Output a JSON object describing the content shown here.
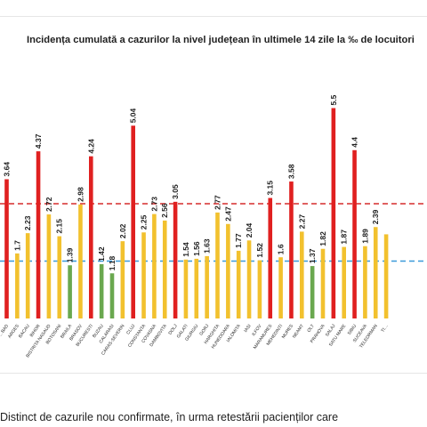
{
  "chart_data": {
    "type": "bar",
    "title": "Incidența cumulată a cazurilor la nivel județean în ultimele 14 zile la ‰ de locuitori",
    "xlabel": "",
    "ylabel": "",
    "ylim": [
      0,
      6
    ],
    "grid": false,
    "legend": "none",
    "categories": [
      "…BAD",
      "ARGES",
      "BACAU",
      "BIHOR",
      "BISTRITA NASAUD",
      "BOTOSANI",
      "BRAILA",
      "BRASOV",
      "BUCURESTI",
      "BUZAU",
      "CALARASI",
      "CARAS-SEVERIN",
      "CLUJ",
      "CONSTANTA",
      "COVASNA",
      "DAMBOVITA",
      "DOLJ",
      "GALATI",
      "GIURGIU",
      "GORJ",
      "HARGHITA",
      "HUNEDOARA",
      "IALOMITA",
      "IASI",
      "ILFOV",
      "MARAMURES",
      "MEHEDINTI",
      "MURES",
      "NEAMT",
      "OLT",
      "PRAHOVA",
      "SALAJ",
      "SATU MARE",
      "SIBIU",
      "SUCEAVA",
      "TELEORMAN",
      "TI…"
    ],
    "values": [
      3.64,
      1.7,
      2.23,
      4.37,
      2.72,
      2.15,
      1.39,
      2.98,
      4.24,
      1.42,
      1.18,
      2.02,
      5.04,
      2.25,
      2.73,
      2.56,
      3.05,
      1.54,
      1.56,
      1.63,
      2.77,
      2.47,
      1.77,
      2.04,
      1.52,
      3.15,
      1.6,
      3.58,
      2.27,
      1.37,
      1.82,
      5.5,
      1.87,
      4.4,
      1.89,
      2.39,
      2.2
    ],
    "data_labels": [
      "3.64",
      "1.7",
      "2.23",
      "4.37",
      "2.72",
      "2.15",
      "1.39",
      "2.98",
      "4.24",
      "1.42",
      "1.18",
      "2.02",
      "5.04",
      "2.25",
      "2.73",
      "2.56",
      "3.05",
      "1.54",
      "1.56",
      "1.63",
      "2.77",
      "2.47",
      "1.77",
      "2.04",
      "1.52",
      "3.15",
      "1.6",
      "3.58",
      "2.27",
      "1.37",
      "1.82",
      "5.5",
      "1.87",
      "4.4",
      "1.89",
      "2.39",
      ""
    ],
    "bar_colors": [
      "red",
      "yellow",
      "yellow",
      "red",
      "yellow",
      "yellow",
      "green",
      "yellow",
      "red",
      "green",
      "green",
      "yellow",
      "red",
      "yellow",
      "yellow",
      "yellow",
      "red",
      "yellow",
      "yellow",
      "yellow",
      "yellow",
      "yellow",
      "yellow",
      "yellow",
      "yellow",
      "red",
      "yellow",
      "red",
      "yellow",
      "green",
      "yellow",
      "red",
      "yellow",
      "red",
      "yellow",
      "yellow",
      "yellow"
    ],
    "reference_lines": [
      {
        "value": 3.0,
        "color": "#d62b2b",
        "style": "dashed"
      },
      {
        "value": 1.5,
        "color": "#3a9ad9",
        "style": "dashed"
      }
    ],
    "colors": {
      "red": "#e02020",
      "yellow": "#f2c12e",
      "green": "#6aa84f"
    }
  },
  "footnote": "Distinct de cazurile nou confirmate, în urma retestării pacienților care"
}
